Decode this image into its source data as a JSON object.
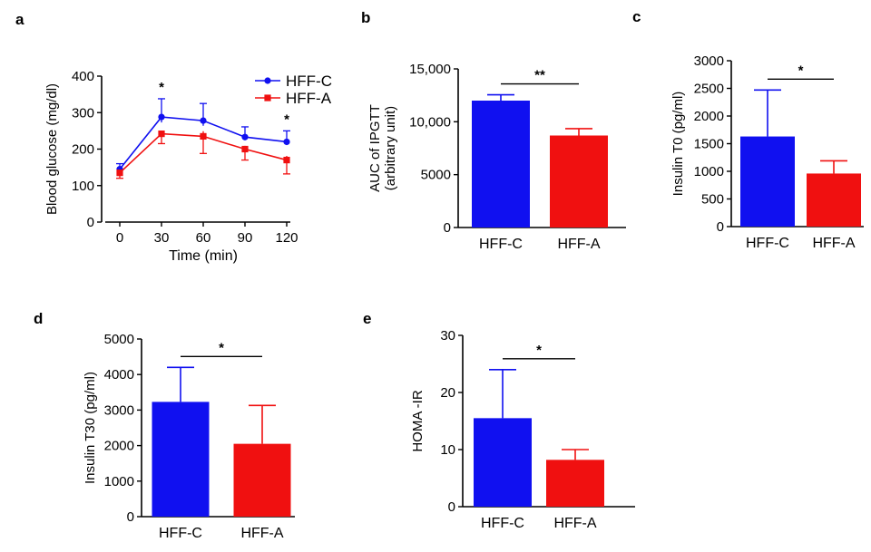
{
  "colors": {
    "hff_c": "#1010f0",
    "hff_a": "#f01010",
    "axis": "#000000"
  },
  "chart_data": [
    {
      "panel": "a",
      "type": "line",
      "xlabel": "Time (min)",
      "ylabel": "Blood glucose (mg/dl)",
      "x": [
        0,
        30,
        60,
        90,
        120
      ],
      "x_ticks": [
        "0",
        "30",
        "60",
        "90",
        "120"
      ],
      "ylim": [
        0,
        400
      ],
      "y_ticks": [
        "0",
        "100",
        "200",
        "300",
        "400"
      ],
      "series": [
        {
          "name": "HFF-C",
          "color": "#1010f0",
          "values": [
            145,
            288,
            278,
            233,
            220
          ],
          "errors": [
            15,
            50,
            47,
            28,
            30
          ]
        },
        {
          "name": "HFF-A",
          "color": "#f01010",
          "values": [
            135,
            242,
            235,
            200,
            170
          ],
          "errors": [
            15,
            27,
            47,
            30,
            38
          ]
        }
      ],
      "significance": [
        {
          "x": 30,
          "label": "*"
        },
        {
          "x": 120,
          "label": "*"
        }
      ],
      "legend": [
        "HFF-C",
        "HFF-A"
      ],
      "legend_position": "top-right"
    },
    {
      "panel": "b",
      "type": "bar",
      "ylabel": "AUC of IPGTT",
      "ylabel2": "(arbitrary unit)",
      "categories": [
        "HFF-C",
        "HFF-A"
      ],
      "values": [
        12000,
        8700
      ],
      "errors": [
        550,
        650
      ],
      "ylim": [
        0,
        15000
      ],
      "y_ticks": [
        "0",
        "5000",
        "10,000",
        "15,000"
      ],
      "significance": "**"
    },
    {
      "panel": "c",
      "type": "bar",
      "ylabel": "Insulin T0 (pg/ml)",
      "categories": [
        "HFF-C",
        "HFF-A"
      ],
      "values": [
        1630,
        960
      ],
      "errors": [
        840,
        230
      ],
      "ylim": [
        0,
        3000
      ],
      "y_ticks": [
        "0",
        "500",
        "1000",
        "1500",
        "2000",
        "2500",
        "3000"
      ],
      "significance": "*"
    },
    {
      "panel": "d",
      "type": "bar",
      "ylabel": "Insulin T30 (pg/ml)",
      "categories": [
        "HFF-C",
        "HFF-A"
      ],
      "values": [
        3230,
        2050
      ],
      "errors": [
        970,
        1080
      ],
      "ylim": [
        0,
        5000
      ],
      "y_ticks": [
        "0",
        "1000",
        "2000",
        "3000",
        "4000",
        "5000"
      ],
      "significance": "*"
    },
    {
      "panel": "e",
      "type": "bar",
      "ylabel": "HOMA -IR",
      "categories": [
        "HFF-C",
        "HFF-A"
      ],
      "values": [
        15.5,
        8.2
      ],
      "errors": [
        8.5,
        1.8
      ],
      "ylim": [
        0,
        30
      ],
      "y_ticks": [
        "0",
        "10",
        "20",
        "30"
      ],
      "significance": "*"
    }
  ]
}
